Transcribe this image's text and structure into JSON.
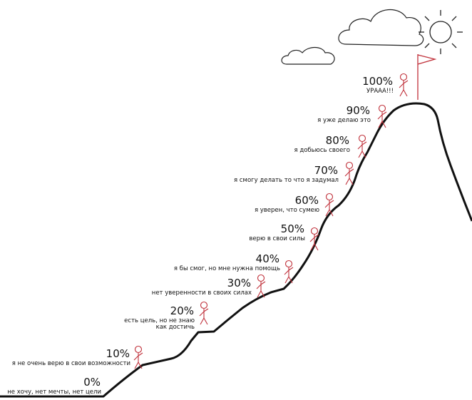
{
  "steps": [
    {
      "percent": "0%",
      "lines": [
        "не хочу, нет мечты, нет цели"
      ]
    },
    {
      "percent": "10%",
      "lines": [
        "я не очень верю в свои возможности"
      ]
    },
    {
      "percent": "20%",
      "lines": [
        "есть цель, но не знаю",
        "как достичь"
      ]
    },
    {
      "percent": "30%",
      "lines": [
        "нет уверенности в своих силах"
      ]
    },
    {
      "percent": "40%",
      "lines": [
        "я бы смог, но мне нужна помощь"
      ]
    },
    {
      "percent": "50%",
      "lines": [
        "верю в свои силы"
      ]
    },
    {
      "percent": "60%",
      "lines": [
        "я уверен, что сумею"
      ]
    },
    {
      "percent": "70%",
      "lines": [
        "я смогу делать то что я задумал"
      ]
    },
    {
      "percent": "80%",
      "lines": [
        "я добьюсь своего"
      ]
    },
    {
      "percent": "90%",
      "lines": [
        "я уже делаю это"
      ]
    },
    {
      "percent": "100%",
      "lines": [
        "УРААА!!!"
      ]
    }
  ]
}
